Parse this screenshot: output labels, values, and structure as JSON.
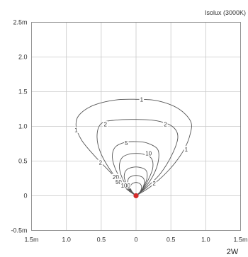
{
  "chart_data": {
    "type": "isolux contour",
    "title": "Isolux (3000K)",
    "power_label": "2W",
    "xlim": [
      -1.5,
      1.5
    ],
    "ylim": [
      -0.5,
      2.5
    ],
    "x_ticks": [
      -1.5,
      -1.0,
      -0.5,
      0,
      0.5,
      1.0,
      1.5
    ],
    "x_tick_labels": [
      "1.5m",
      "1.0",
      "0.5",
      "0",
      "0.5",
      "1.0",
      "1.5m"
    ],
    "y_ticks": [
      -0.5,
      0,
      0.5,
      1.0,
      1.5,
      2.0,
      2.5
    ],
    "y_tick_labels": [
      "-0.5m",
      "0",
      "0.5",
      "1.0",
      "1.5",
      "2.0",
      "2.5m"
    ],
    "grid": true,
    "source": {
      "x": 0,
      "y": 0,
      "color": "#d42a2a"
    },
    "contour_color": "#555555",
    "contours": [
      {
        "level": "1",
        "points": [
          [
            0,
            0
          ],
          [
            0.22,
            0.14
          ],
          [
            0.48,
            0.38
          ],
          [
            0.68,
            0.65
          ],
          [
            0.78,
            0.9
          ],
          [
            0.78,
            1.08
          ],
          [
            0.6,
            1.26
          ],
          [
            0.3,
            1.37
          ],
          [
            0,
            1.39
          ],
          [
            -0.3,
            1.38
          ],
          [
            -0.62,
            1.3
          ],
          [
            -0.82,
            1.16
          ],
          [
            -0.86,
            1.0
          ],
          [
            -0.78,
            0.8
          ],
          [
            -0.6,
            0.58
          ],
          [
            -0.38,
            0.35
          ],
          [
            -0.18,
            0.14
          ],
          [
            0,
            0
          ]
        ],
        "labels": [
          {
            "text": "1",
            "x": 0.08,
            "y": 1.39
          },
          {
            "text": "1",
            "x": 0.72,
            "y": 0.67
          },
          {
            "text": "1",
            "x": -0.86,
            "y": 0.95
          }
        ]
      },
      {
        "level": "2",
        "points": [
          [
            0,
            0
          ],
          [
            0.15,
            0.12
          ],
          [
            0.35,
            0.32
          ],
          [
            0.52,
            0.6
          ],
          [
            0.6,
            0.85
          ],
          [
            0.52,
            1.0
          ],
          [
            0.3,
            1.08
          ],
          [
            0,
            1.1
          ],
          [
            -0.3,
            1.09
          ],
          [
            -0.5,
            1.04
          ],
          [
            -0.56,
            0.85
          ],
          [
            -0.5,
            0.6
          ],
          [
            -0.32,
            0.3
          ],
          [
            -0.14,
            0.1
          ],
          [
            0,
            0
          ]
        ],
        "labels": [
          {
            "text": "2",
            "x": 0.42,
            "y": 1.03
          },
          {
            "text": "2",
            "x": -0.44,
            "y": 1.03
          },
          {
            "text": "2",
            "x": -0.51,
            "y": 0.48
          },
          {
            "text": "2",
            "x": 0.26,
            "y": 0.18
          }
        ]
      },
      {
        "level": "5",
        "points": [
          [
            0,
            0
          ],
          [
            0.13,
            0.12
          ],
          [
            0.25,
            0.3
          ],
          [
            0.32,
            0.5
          ],
          [
            0.31,
            0.67
          ],
          [
            0.16,
            0.76
          ],
          [
            0,
            0.78
          ],
          [
            -0.16,
            0.77
          ],
          [
            -0.3,
            0.7
          ],
          [
            -0.34,
            0.55
          ],
          [
            -0.28,
            0.35
          ],
          [
            -0.16,
            0.15
          ],
          [
            0,
            0
          ]
        ],
        "labels": [
          {
            "text": "5",
            "x": -0.14,
            "y": 0.76
          }
        ]
      },
      {
        "level": "10",
        "points": [
          [
            0,
            0
          ],
          [
            0.1,
            0.1
          ],
          [
            0.18,
            0.24
          ],
          [
            0.24,
            0.4
          ],
          [
            0.22,
            0.54
          ],
          [
            0.1,
            0.6
          ],
          [
            0,
            0.61
          ],
          [
            -0.1,
            0.6
          ],
          [
            -0.2,
            0.55
          ],
          [
            -0.24,
            0.42
          ],
          [
            -0.2,
            0.26
          ],
          [
            -0.12,
            0.12
          ],
          [
            0,
            0
          ]
        ],
        "labels": [
          {
            "text": "10",
            "x": 0.18,
            "y": 0.61
          }
        ]
      },
      {
        "level": "20",
        "points": [
          [
            0,
            0
          ],
          [
            0.07,
            0.07
          ],
          [
            0.13,
            0.17
          ],
          [
            0.16,
            0.28
          ],
          [
            0.14,
            0.37
          ],
          [
            0.05,
            0.41
          ],
          [
            -0.05,
            0.41
          ],
          [
            -0.14,
            0.37
          ],
          [
            -0.17,
            0.27
          ],
          [
            -0.13,
            0.16
          ],
          [
            -0.07,
            0.07
          ],
          [
            0,
            0
          ]
        ],
        "labels": [
          {
            "text": "20",
            "x": -0.29,
            "y": 0.27
          }
        ]
      },
      {
        "level": "50",
        "points": [
          [
            0,
            0
          ],
          [
            0.06,
            0.05
          ],
          [
            0.1,
            0.12
          ],
          [
            0.12,
            0.2
          ],
          [
            0.1,
            0.26
          ],
          [
            0.03,
            0.29
          ],
          [
            -0.03,
            0.29
          ],
          [
            -0.1,
            0.26
          ],
          [
            -0.12,
            0.19
          ],
          [
            -0.1,
            0.12
          ],
          [
            -0.05,
            0.05
          ],
          [
            0,
            0
          ]
        ],
        "labels": [
          {
            "text": "50",
            "x": -0.25,
            "y": 0.2
          }
        ]
      },
      {
        "level": "100",
        "points": [
          [
            0,
            0
          ],
          [
            0.04,
            0.03
          ],
          [
            0.07,
            0.08
          ],
          [
            0.08,
            0.13
          ],
          [
            0.06,
            0.17
          ],
          [
            0.02,
            0.19
          ],
          [
            -0.02,
            0.19
          ],
          [
            -0.06,
            0.17
          ],
          [
            -0.08,
            0.13
          ],
          [
            -0.07,
            0.08
          ],
          [
            -0.04,
            0.03
          ],
          [
            0,
            0
          ]
        ],
        "labels": [
          {
            "text": "100",
            "x": -0.15,
            "y": 0.15
          }
        ]
      }
    ]
  }
}
